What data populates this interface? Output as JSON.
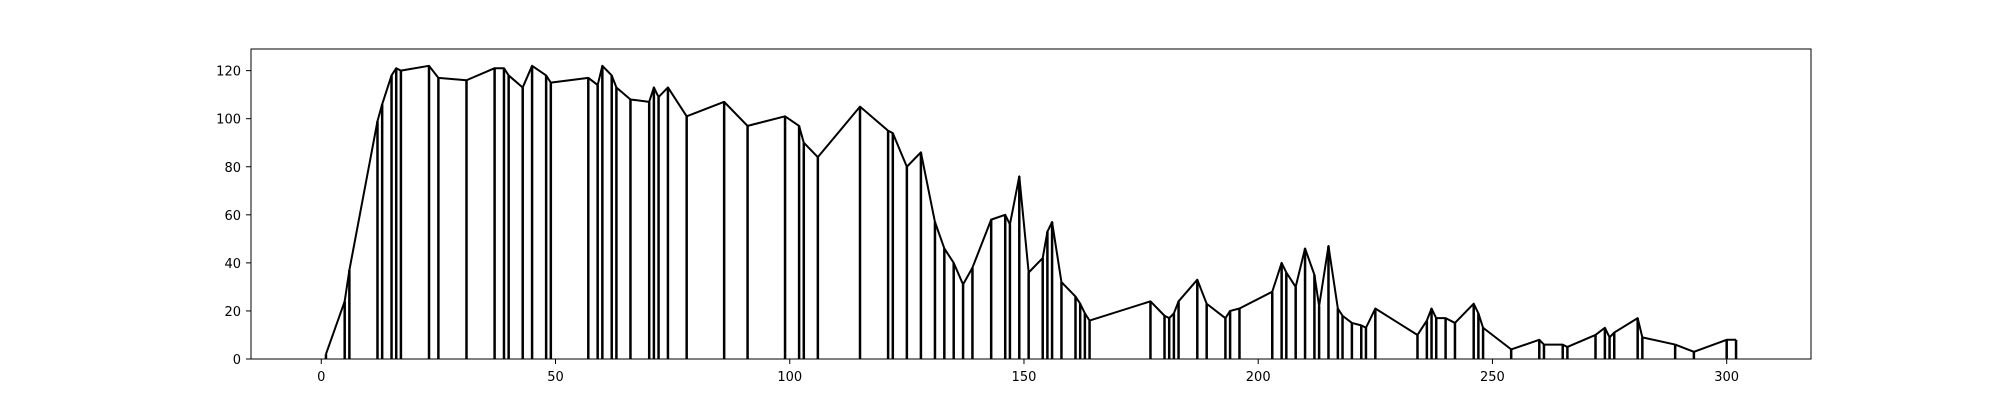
{
  "chart_data": {
    "type": "line",
    "title": "",
    "xlabel": "",
    "ylabel": "",
    "xlim": [
      -15,
      318
    ],
    "ylim": [
      0,
      129
    ],
    "xticks": [
      0,
      50,
      100,
      150,
      200,
      250,
      300
    ],
    "yticks": [
      0,
      20,
      40,
      60,
      80,
      100,
      120
    ],
    "xtick_labels": [
      "0",
      "50",
      "100",
      "150",
      "200",
      "250",
      "300"
    ],
    "ytick_labels": [
      "0",
      "20",
      "40",
      "60",
      "80",
      "100",
      "120"
    ],
    "grid": false,
    "legend": "none",
    "style": "vertical drop lines from each point to zero, connected by an outline",
    "line_color": "#000000",
    "series": [
      {
        "x": [
          1,
          5,
          6,
          12,
          13,
          15,
          16,
          17,
          23,
          25,
          31,
          37,
          39,
          40,
          43,
          45,
          48,
          49,
          57,
          59,
          60,
          62,
          63,
          66,
          70,
          71,
          72,
          74,
          78,
          86,
          91,
          99,
          102,
          103,
          106,
          115,
          121,
          122,
          125,
          128,
          131,
          133,
          135,
          137,
          139,
          143,
          146,
          147,
          149,
          151,
          154,
          155,
          156,
          158,
          161,
          162,
          163,
          164,
          177,
          180,
          181,
          182,
          183,
          187,
          189,
          193,
          194,
          196,
          203,
          205,
          206,
          208,
          210,
          212,
          213,
          215,
          217,
          218,
          220,
          222,
          223,
          225,
          234,
          236,
          237,
          238,
          240,
          242,
          246,
          247,
          248,
          254,
          260,
          261,
          265,
          266,
          272,
          274,
          275,
          276,
          281,
          282,
          289,
          293,
          300,
          302
        ],
        "y": [
          2,
          24,
          37,
          99,
          106,
          118,
          121,
          120,
          122,
          117,
          116,
          121,
          121,
          118,
          113,
          122,
          118,
          115,
          117,
          114,
          122,
          118,
          113,
          108,
          107,
          113,
          109,
          113,
          101,
          107,
          97,
          101,
          97,
          90,
          84,
          105,
          95,
          94,
          80,
          86,
          57,
          46,
          40,
          31,
          38,
          58,
          60,
          56,
          76,
          36,
          42,
          53,
          57,
          32,
          26,
          23,
          19,
          16,
          24,
          18,
          17,
          19,
          24,
          33,
          23,
          17,
          20,
          21,
          28,
          40,
          36,
          30,
          46,
          35,
          22,
          47,
          21,
          18,
          15,
          14,
          13,
          21,
          10,
          16,
          21,
          17,
          17,
          15,
          23,
          19,
          13,
          4,
          8,
          6,
          6,
          5,
          10,
          13,
          9,
          11,
          17,
          9,
          6,
          3,
          8,
          8
        ]
      }
    ]
  }
}
